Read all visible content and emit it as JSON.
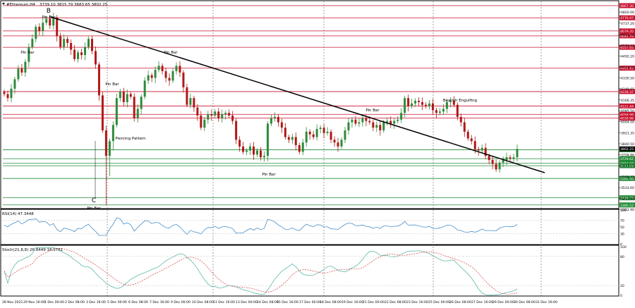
{
  "header": {
    "symbol_title": "#Ethereum,H4",
    "ohlc": "3739.10 3815.79 3683.65 3802.25"
  },
  "indicators": {
    "rsi_title": "RSI(14) 47.3448",
    "stoch_title": "Stoch(21,8,8) 26.8449 18.5781"
  },
  "colors": {
    "bull": "#2e8b3a",
    "bear": "#b01818",
    "resistance": "#c8102e",
    "support": "#1f8a36",
    "trendline": "#000000",
    "rsi_line": "#4a90c8",
    "stoch_main": "#5fb8a8",
    "stoch_signal": "#d04040"
  },
  "annotations": [
    {
      "label": "B"
    },
    {
      "label": "Pin Bar"
    },
    {
      "label": "Pin Bar"
    },
    {
      "label": "Pin Bar"
    },
    {
      "label": "Pin Bar"
    },
    {
      "label": "Piercing Pattern"
    },
    {
      "label": "Pin Bar"
    },
    {
      "label": "Pin Bar"
    },
    {
      "label": "Bearish Engulfing"
    },
    {
      "label": "C"
    },
    {
      "label": "Pin Bar"
    }
  ],
  "chart_data": {
    "type": "candlestick",
    "y_axis_ticks": [
      "4820.00",
      "4737.20",
      "4651.40",
      "4570.50",
      "4492.20",
      "4411.50",
      "4330.50",
      "4249.65",
      "4166.35",
      "4085.50",
      "4004.00",
      "3921.35",
      "3840.50",
      "3758.86",
      "3677.15",
      "3596.35",
      "3514.60",
      "3433.90",
      "3352.90"
    ],
    "resistance_levels": [
      {
        "price": 4867.3,
        "label": "4867.30"
      },
      {
        "price": 4776.97,
        "label": "4776.97"
      },
      {
        "price": 4679.35,
        "label": "4679.35"
      },
      {
        "price": 4642.7,
        "label": "4642.70"
      },
      {
        "price": 4557.65,
        "label": "4557.65"
      },
      {
        "price": 4402.42,
        "label": "4402.42"
      },
      {
        "price": 4228.37,
        "label": "4228.37"
      },
      {
        "price": 4121.44,
        "label": "4121.44"
      },
      {
        "price": 4058.99,
        "label": "4058.99"
      },
      {
        "price": 4030.96,
        "label": "4030.96"
      }
    ],
    "support_levels": [
      {
        "price": 3796.0,
        "label": "3796.00"
      },
      {
        "price": 3729.62,
        "label": "3729.62"
      },
      {
        "price": 3694.87,
        "label": "3694.87"
      },
      {
        "price": 3677.28,
        "label": "3677.28"
      },
      {
        "price": 3582.4,
        "label": "3582.40"
      },
      {
        "price": 3438.79,
        "label": "3438.79"
      },
      {
        "price": 3385.52,
        "label": "3385.52"
      }
    ],
    "current_price": {
      "price": 3802.25,
      "label": "3802.25"
    },
    "x_labels": [
      "28 Nov 2021",
      "29 Nov 16:00",
      "1 Dec 00:00",
      "2 Dec 08:00",
      "3 Dec 16:00",
      "5 Dec 00:00",
      "6 Dec 08:00",
      "7 Dec 16:00",
      "9 Dec 00:00",
      "10 Dec 08:00",
      "11 Dec 16:00",
      "13 Dec 00:00",
      "14 Dec 08:00",
      "15 Dec 16:00",
      "17 Dec 00:00",
      "18 Dec 08:00",
      "19 Dec 16:00",
      "21 Dec 00:00",
      "22 Dec 08:00",
      "23 Dec 16:00",
      "25 Dec 00:00",
      "26 Dec 08:00",
      "27 Dec 16:00",
      "29 Dec 00:00",
      "30 Dec 08:00",
      "31 Dec 16:00"
    ],
    "rsi_axis_labels": [
      "100",
      "70",
      "50",
      "30",
      "0"
    ],
    "stoch_axis_labels": [
      "100",
      "80",
      "20",
      "0"
    ],
    "closes": [
      4210,
      4180,
      4250,
      4320,
      4400,
      4370,
      4450,
      4560,
      4620,
      4710,
      4680,
      4740,
      4770,
      4720,
      4780,
      4640,
      4560,
      4620,
      4590,
      4540,
      4470,
      4520,
      4500,
      4560,
      4620,
      4530,
      4430,
      4200,
      3940,
      3750,
      3860,
      3980,
      4180,
      4230,
      4150,
      4210,
      4190,
      4030,
      4100,
      4190,
      4310,
      4350,
      4330,
      4390,
      4420,
      4380,
      4330,
      4310,
      4380,
      4420,
      4370,
      4260,
      4130,
      4180,
      4110,
      4050,
      3960,
      4020,
      4060,
      4050,
      4080,
      4030,
      4060,
      4070,
      4050,
      4010,
      3870,
      3820,
      3780,
      3790,
      3820,
      3760,
      3790,
      3740,
      3750,
      3990,
      4030,
      4040,
      4000,
      3960,
      3890,
      3870,
      3890,
      3830,
      3780,
      3850,
      3930,
      3910,
      3890,
      3950,
      3960,
      3920,
      3930,
      3870,
      3850,
      3820,
      3870,
      3940,
      4000,
      4020,
      3990,
      4000,
      4030,
      4010,
      4000,
      3960,
      3980,
      3940,
      4000,
      4010,
      3990,
      4010,
      4020,
      4070,
      4180,
      4120,
      4140,
      4160,
      4150,
      4130,
      4120,
      4140,
      4090,
      4070,
      4080,
      4100,
      4150,
      4160,
      4130,
      4040,
      4000,
      3930,
      3880,
      3860,
      3800,
      3790,
      3810,
      3750,
      3720,
      3690,
      3650,
      3700,
      3720,
      3740,
      3730,
      3740,
      3802
    ]
  }
}
